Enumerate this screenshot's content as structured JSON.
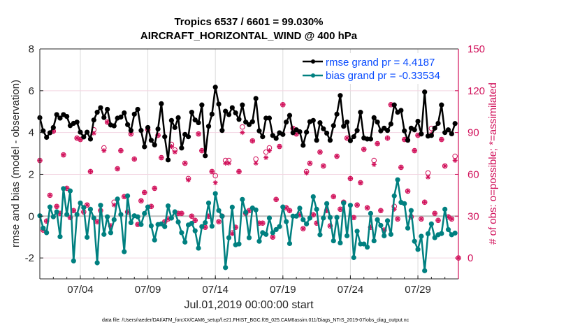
{
  "chart_data": {
    "type": "line",
    "title": [
      "Tropics 6537 / 6601 = 99.030%",
      "AIRCRAFT_HORIZONTAL_WIND @ 400 hPa"
    ],
    "xlabel": "Jul.01,2019 00:00:00 start",
    "ylabel": "rmse and bias (model - observation)",
    "ylabel_right": "# of obs: o=possible; *=assimilated",
    "footer": "data file: /Users/raeder/DAI/ATM_forcXX/CAM6_setup/f.e21.FHIST_BGC.f09_025.CAM6assim.011/Diags_NTrS_2019-07/obs_diag_output.nc",
    "xlim": [
      1,
      32
    ],
    "ylim": [
      -3,
      8
    ],
    "ylim_right": [
      -15,
      150
    ],
    "x_ticks": [
      4,
      9,
      14,
      19,
      24,
      29
    ],
    "x_tick_labels": [
      "07/04",
      "07/09",
      "07/14",
      "07/19",
      "07/24",
      "07/29"
    ],
    "y_ticks": [
      -2,
      0,
      2,
      4,
      6,
      8
    ],
    "y_ticks_right": [
      0,
      30,
      60,
      90,
      120,
      150
    ],
    "grid": true,
    "legend_position": "top-right",
    "colors": {
      "rmse": "#000000",
      "bias": "#008080",
      "obs": "#d1105a",
      "legend_text": "#0a4cff",
      "zero_line": "#bdbdbd"
    },
    "x": [
      1,
      1.25,
      1.5,
      1.75,
      2,
      2.25,
      2.5,
      2.75,
      3,
      3.25,
      3.5,
      3.75,
      4,
      4.25,
      4.5,
      4.75,
      5,
      5.25,
      5.5,
      5.75,
      6,
      6.25,
      6.5,
      6.75,
      7,
      7.25,
      7.5,
      7.75,
      8,
      8.25,
      8.5,
      8.75,
      9,
      9.25,
      9.5,
      9.75,
      10,
      10.25,
      10.5,
      10.75,
      11,
      11.25,
      11.5,
      11.75,
      12,
      12.25,
      12.5,
      12.75,
      13,
      13.25,
      13.5,
      13.75,
      14,
      14.25,
      14.5,
      14.75,
      15,
      15.25,
      15.5,
      15.75,
      16,
      16.25,
      16.5,
      16.75,
      17,
      17.25,
      17.5,
      17.75,
      18,
      18.25,
      18.5,
      18.75,
      19,
      19.25,
      19.5,
      19.75,
      20,
      20.25,
      20.5,
      20.75,
      21,
      21.25,
      21.5,
      21.75,
      22,
      22.25,
      22.5,
      22.75,
      23,
      23.25,
      23.5,
      23.75,
      24,
      24.25,
      24.5,
      24.75,
      25,
      25.25,
      25.5,
      25.75,
      26,
      26.25,
      26.5,
      26.75,
      27,
      27.25,
      27.5,
      27.75,
      28,
      28.25,
      28.5,
      28.75,
      29,
      29.25,
      29.5,
      29.75,
      30,
      30.25,
      30.5,
      30.75,
      31,
      31.25,
      31.5,
      31.75,
      32
    ],
    "series": [
      {
        "name": "rmse grand pr = 4.4187",
        "axis": "left",
        "marker": "asterisk-dot",
        "values": [
          4.71,
          4.08,
          3.77,
          3.99,
          4.24,
          4.86,
          4.69,
          4.86,
          4.77,
          4.33,
          4.44,
          4.5,
          4.02,
          3.79,
          4.02,
          3.69,
          4.6,
          4.97,
          5.19,
          4.72,
          5.11,
          4.36,
          4.32,
          4.69,
          4.74,
          4.94,
          4.38,
          4.1,
          4.88,
          5.11,
          4.1,
          3.32,
          4.24,
          3.63,
          3.41,
          4.17,
          5.38,
          3.8,
          2.69,
          4.58,
          4.24,
          4.71,
          3.26,
          3.91,
          3.8,
          4.97,
          4.6,
          4.47,
          5.32,
          2.89,
          4.3,
          4.88,
          6.17,
          5.36,
          4.1,
          5.02,
          4.86,
          5.19,
          4.94,
          4.63,
          5.32,
          4.5,
          4.38,
          4.52,
          5.63,
          4.08,
          3.8,
          4.69,
          4.69,
          3.86,
          3.72,
          3.99,
          3.91,
          4.5,
          4.82,
          3.99,
          4.13,
          4.04,
          3.39,
          4.02,
          4.52,
          4.58,
          3.63,
          4.47,
          4.18,
          3.97,
          3.63,
          4.33,
          4.88,
          5.77,
          4.3,
          4.5,
          3.61,
          3.8,
          4.1,
          4.97,
          3.74,
          3.69,
          3.69,
          4.71,
          4.5,
          4.08,
          4.21,
          4.1,
          4.41,
          5.32,
          4.97,
          5.06,
          4.08,
          3.63,
          4.21,
          4.13,
          4.54,
          3.93,
          5.94,
          3.83,
          3.86,
          4.21,
          4.44,
          5.32,
          4.0,
          4.13,
          3.94,
          4.43,
          null
        ]
      },
      {
        "name": "bias grand pr = -0.33534",
        "axis": "left",
        "marker": "dot",
        "values": [
          0.02,
          -0.57,
          -0.79,
          0.44,
          -0.03,
          0.21,
          -0.98,
          1.32,
          0.08,
          1.21,
          -2.14,
          0.08,
          0.63,
          0.41,
          -1.01,
          0.33,
          -0.09,
          -2.23,
          0.52,
          -0.87,
          -0.03,
          -0.79,
          -0.17,
          0.82,
          0.08,
          -1.7,
          0.97,
          -0.31,
          0.02,
          -0.03,
          -0.4,
          0.13,
          0.44,
          -0.46,
          -1.14,
          -0.4,
          -0.37,
          -0.5,
          0.49,
          -0.09,
          0.21,
          -0.28,
          -0.79,
          -1.24,
          -0.42,
          -0.34,
          -0.7,
          -1.53,
          -0.5,
          -0.31,
          0.63,
          -0.48,
          1.08,
          0.27,
          0,
          -2.46,
          -1.03,
          0.43,
          -1.37,
          -1.33,
          0.8,
          0.19,
          -1.03,
          0.39,
          0.3,
          -1.2,
          -0.79,
          -0.87,
          -0.09,
          -0.79,
          -0.64,
          -0.5,
          0.44,
          -0.26,
          -1.31,
          0,
          0,
          0.38,
          -0.17,
          -0.37,
          -0.09,
          0.93,
          0.33,
          -0.89,
          -0.09,
          0.6,
          -0.06,
          -1.18,
          -0.06,
          -1.28,
          0.63,
          -0.94,
          0.52,
          -1.98,
          -0.72,
          -1.33,
          -1.33,
          -1.48,
          0.13,
          -1.18,
          -0.17,
          -0.44,
          -0.94,
          -0.22,
          -0.87,
          0.97,
          1.74,
          0.66,
          0.6,
          -0.57,
          0.27,
          -1.2,
          -1.59,
          -0.96,
          -2.61,
          -0.84,
          -0.37,
          -1.03,
          -0.89,
          -0.83,
          0.33,
          -0.64,
          -0.89,
          -0.81,
          null
        ]
      },
      {
        "name": "possible",
        "axis": "right",
        "marker": "circle",
        "values": [
          70,
          20,
          26.5,
          45,
          91,
          37,
          32,
          74,
          50,
          29,
          34,
          86,
          85,
          33,
          38,
          62,
          92,
          26,
          34,
          79,
          97.5,
          23,
          40,
          64,
          77,
          44,
          33,
          89,
          71,
          24,
          41,
          47,
          92,
          37,
          50,
          88,
          72,
          26,
          28,
          81.5,
          77.5,
          32,
          32,
          68,
          57,
          30,
          27,
          89,
          77,
          22,
          30,
          62,
          59,
          26,
          30,
          70,
          70,
          18,
          22,
          62,
          94,
          32,
          34,
          84,
          71,
          25,
          25,
          76,
          79,
          15,
          42,
          80,
          110,
          36,
          34,
          93,
          89,
          31,
          21,
          62,
          68,
          31,
          25,
          76,
          66,
          34,
          23,
          44,
          73,
          35,
          40,
          86,
          57,
          29,
          38,
          54,
          78,
          36,
          22,
          70,
          82,
          34,
          20,
          86,
          110,
          37,
          28,
          65,
          85,
          48,
          29.5,
          77,
          88,
          28,
          40,
          61,
          93,
          32,
          27,
          85,
          66,
          29.5,
          28,
          73,
          0
        ]
      },
      {
        "name": "assimilated",
        "axis": "right",
        "marker": "asterisk",
        "values": [
          70,
          20,
          26.5,
          45,
          91,
          37,
          32,
          74,
          50,
          29,
          34,
          86,
          85,
          33,
          38,
          62,
          89.5,
          26,
          34,
          77,
          97.5,
          23,
          38,
          64,
          77,
          44,
          33,
          89,
          71,
          24,
          41,
          47,
          92,
          37,
          50,
          88,
          72,
          26,
          28,
          80,
          76,
          32,
          32,
          68,
          56,
          30,
          27,
          89,
          77,
          22,
          30,
          62,
          54,
          26,
          30,
          68,
          68,
          17.5,
          22,
          62,
          90,
          32,
          34,
          84,
          68,
          25,
          25,
          72,
          77,
          15,
          42,
          80,
          110,
          36,
          34,
          93,
          89,
          31,
          21,
          61,
          68,
          31,
          25,
          76,
          66,
          34,
          23,
          44,
          73,
          35,
          40,
          86,
          57,
          29,
          38,
          54,
          78,
          36,
          22,
          67,
          82,
          34,
          20,
          86,
          110,
          35,
          28,
          65,
          85,
          48,
          29.5,
          77,
          88,
          28,
          40,
          58,
          89,
          32,
          27,
          85,
          66,
          29.5,
          28,
          70,
          0
        ]
      }
    ]
  }
}
